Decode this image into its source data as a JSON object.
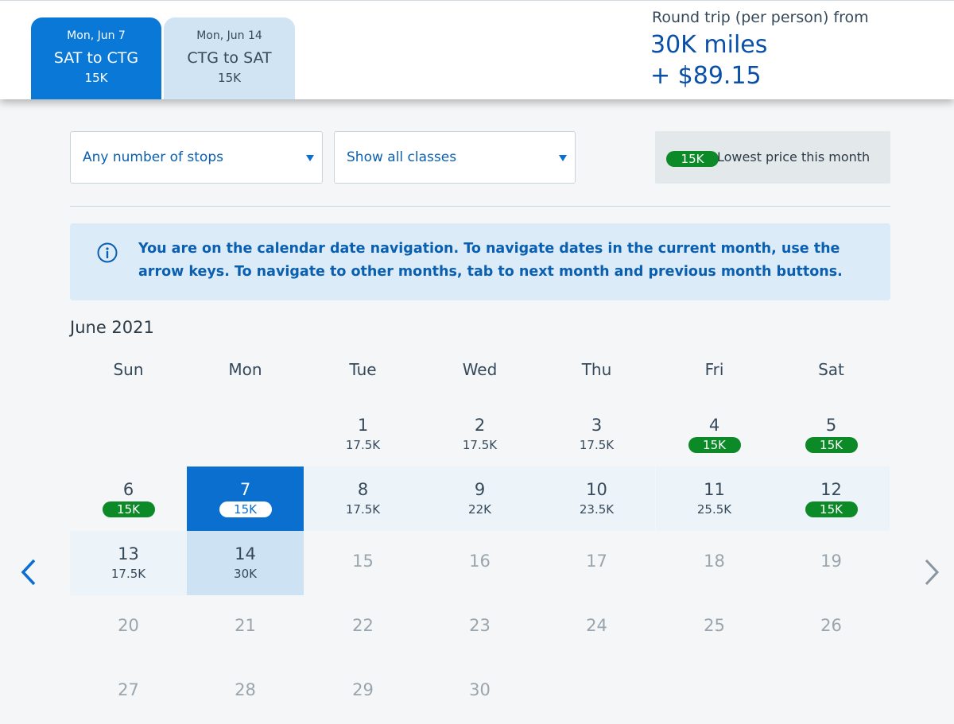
{
  "header": {
    "outbound": {
      "date": "Mon, Jun 7",
      "route": "SAT to CTG",
      "miles": "15K"
    },
    "return": {
      "date": "Mon, Jun 14",
      "route": "CTG to SAT",
      "miles": "15K"
    },
    "price_label": "Round trip (per person) from",
    "price_miles": "30K miles",
    "price_fee": "+ $89.15"
  },
  "filters": {
    "stops": "Any number of stops",
    "classes": "Show all classes",
    "lowest_badge": "15K",
    "lowest_text": "Lowest price this month"
  },
  "banner": {
    "message": "You are on the calendar date navigation. To navigate dates in the current month, use the arrow keys. To navigate to other months, tab to next month and previous month buttons."
  },
  "calendar": {
    "month_label": "June 2021",
    "weekdays": [
      "Sun",
      "Mon",
      "Tue",
      "Wed",
      "Thu",
      "Fri",
      "Sat"
    ],
    "days": [
      {
        "day": "1",
        "price": "17.5K"
      },
      {
        "day": "2",
        "price": "17.5K"
      },
      {
        "day": "3",
        "price": "17.5K"
      },
      {
        "day": "4",
        "price": "15K",
        "lowest": true
      },
      {
        "day": "5",
        "price": "15K",
        "lowest": true
      },
      {
        "day": "6",
        "price": "15K",
        "lowest": true
      },
      {
        "day": "7",
        "price": "15K",
        "lowest": true,
        "state": "selected"
      },
      {
        "day": "8",
        "price": "17.5K",
        "state": "range"
      },
      {
        "day": "9",
        "price": "22K",
        "state": "range"
      },
      {
        "day": "10",
        "price": "23.5K",
        "state": "range"
      },
      {
        "day": "11",
        "price": "25.5K",
        "state": "range"
      },
      {
        "day": "12",
        "price": "15K",
        "lowest": true,
        "state": "range"
      },
      {
        "day": "13",
        "price": "17.5K",
        "state": "range"
      },
      {
        "day": "14",
        "price": "30K",
        "state": "return"
      },
      {
        "day": "15"
      },
      {
        "day": "16"
      },
      {
        "day": "17"
      },
      {
        "day": "18"
      },
      {
        "day": "19"
      },
      {
        "day": "20"
      },
      {
        "day": "21"
      },
      {
        "day": "22"
      },
      {
        "day": "23"
      },
      {
        "day": "24"
      },
      {
        "day": "25"
      },
      {
        "day": "26"
      },
      {
        "day": "27"
      },
      {
        "day": "28"
      },
      {
        "day": "29"
      },
      {
        "day": "30"
      }
    ],
    "first_weekday_index": 2
  },
  "colors": {
    "accent": "#0a6fcf",
    "lowest_green": "#0c8a28",
    "banner_bg": "#dbecf8"
  },
  "icons": {
    "info": "info-icon",
    "prev": "chevron-left-icon",
    "next": "chevron-right-icon",
    "dropdown": "caret-down-icon"
  }
}
